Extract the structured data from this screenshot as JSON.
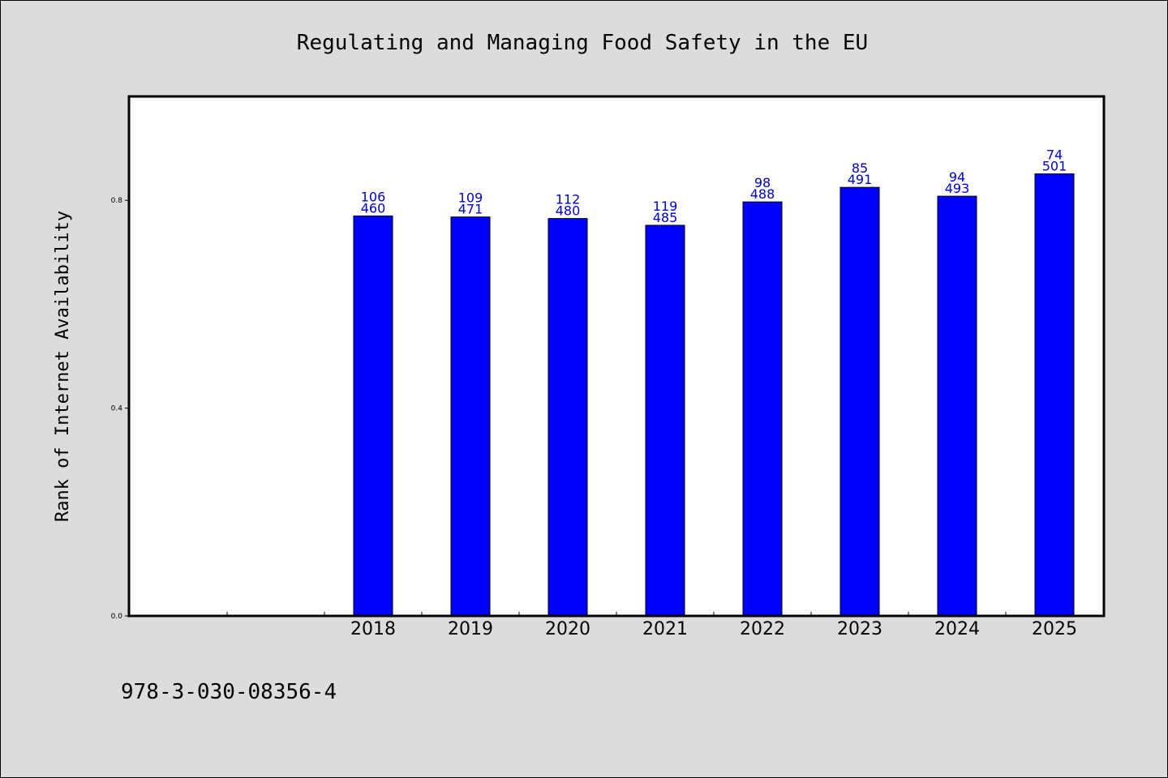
{
  "isbn": "978-3-030-08356-4",
  "chart_data": {
    "type": "bar",
    "title": "Regulating and Managing Food Safety in the EU",
    "xlabel": "",
    "ylabel": "Rank of Internet Availability",
    "ylim": [
      0,
      1.0
    ],
    "yticks": [
      "0.0",
      "0.4",
      "0.8"
    ],
    "categories": [
      "2018",
      "2019",
      "2020",
      "2021",
      "2022",
      "2023",
      "2024",
      "2025"
    ],
    "values": [
      0.77,
      0.768,
      0.765,
      0.752,
      0.797,
      0.825,
      0.808,
      0.851
    ],
    "label_top": [
      "106",
      "109",
      "112",
      "119",
      "98",
      "85",
      "94",
      "74"
    ],
    "label_bottom": [
      "460",
      "471",
      "480",
      "485",
      "488",
      "491",
      "493",
      "501"
    ],
    "bar_color": "#0000ff",
    "label_color": "#0000cc",
    "grid": false
  }
}
